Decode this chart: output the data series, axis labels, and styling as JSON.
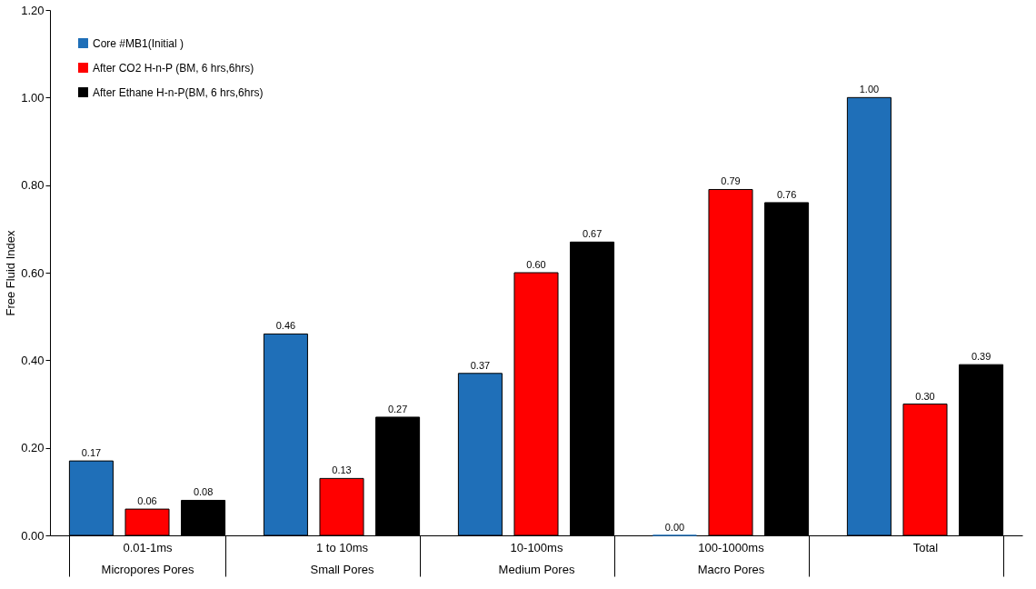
{
  "chart_data": {
    "type": "bar",
    "ylabel": "Free Fluid Index",
    "categories": [
      "0.01-1ms\nMicropores Pores",
      "1 to 10ms\nSmall Pores",
      "10-100ms\nMedium Pores",
      "100-1000ms\nMacro Pores",
      "Total"
    ],
    "series": [
      {
        "name": "Core  #MB1(Initial )",
        "color": "#1f6fb8",
        "values": [
          0.17,
          0.46,
          0.37,
          0.0,
          1.0
        ],
        "value_labels": [
          "0.17",
          "0.46",
          "0.37",
          "0.00",
          "1.00"
        ]
      },
      {
        "name": "After CO2 H-n-P (BM, 6 hrs,6hrs)",
        "color": "#ff0000",
        "values": [
          0.06,
          0.13,
          0.6,
          0.79,
          0.3
        ],
        "value_labels": [
          "0.06",
          "0.13",
          "0.60",
          "0.79",
          "0.30"
        ]
      },
      {
        "name": "After Ethane H-n-P(BM, 6 hrs,6hrs)",
        "color": "#000000",
        "values": [
          0.08,
          0.27,
          0.67,
          0.76,
          0.39
        ],
        "value_labels": [
          "0.08",
          "0.27",
          "0.67",
          "0.76",
          "0.39"
        ]
      }
    ],
    "ylim": [
      0,
      1.2
    ],
    "yticks": [
      {
        "value": 0,
        "label": "0.00"
      },
      {
        "value": 0.2,
        "label": "0.20"
      },
      {
        "value": 0.4,
        "label": "0.40"
      },
      {
        "value": 0.6,
        "label": "0.60"
      },
      {
        "value": 0.8,
        "label": "0.80"
      },
      {
        "value": 1.0,
        "label": "1.00"
      },
      {
        "value": 1.2,
        "label": "1.20"
      }
    ],
    "grid": false,
    "legend": "top left"
  }
}
